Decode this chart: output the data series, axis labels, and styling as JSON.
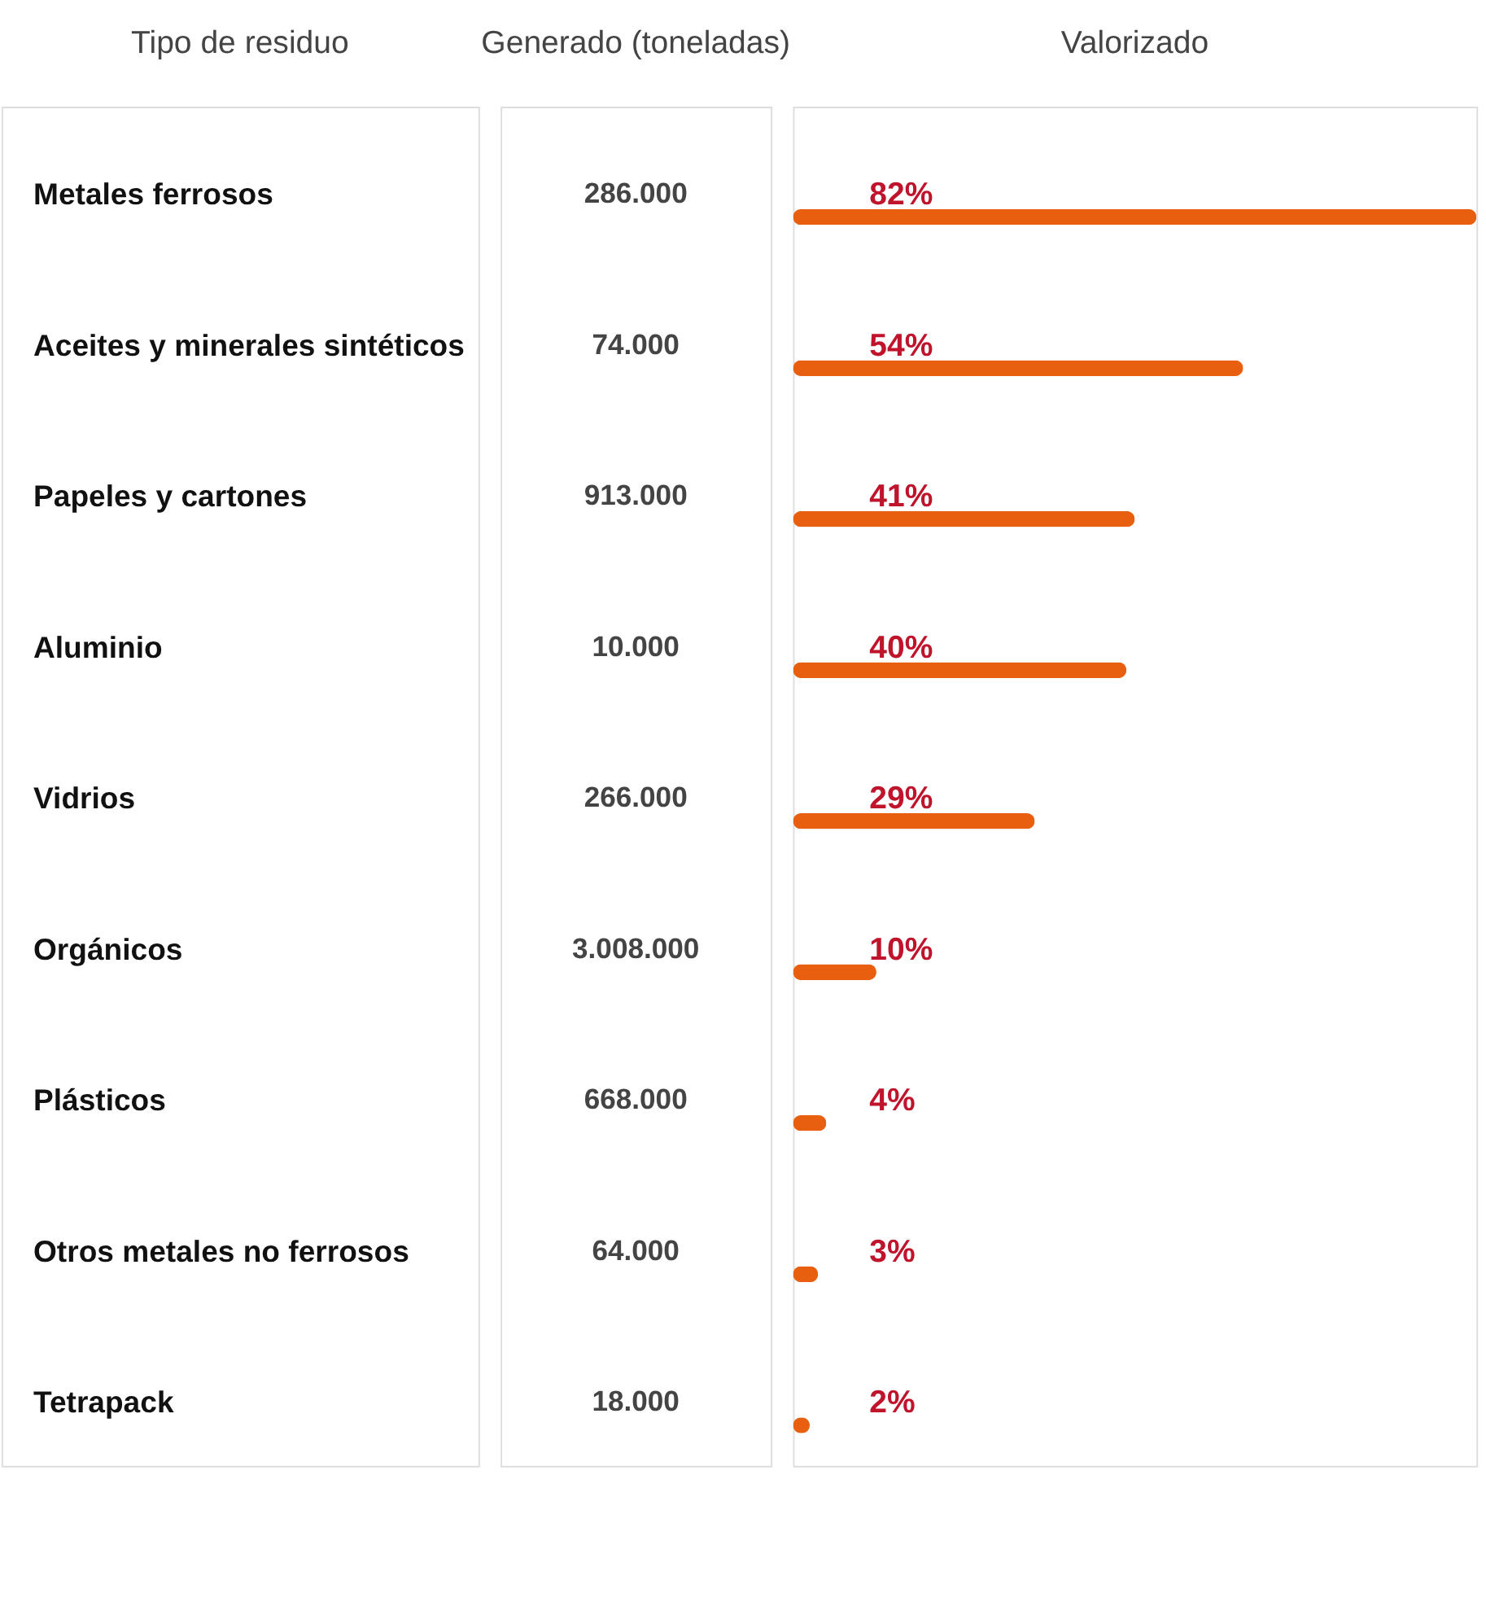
{
  "chart_data": {
    "type": "bar",
    "orientation": "horizontal",
    "ylabel": "Tipo de residuo",
    "xlabel": "Valorizado",
    "categories": [
      "Metales ferrosos",
      "Aceites y minerales sintéticos",
      "Papeles y cartones",
      "Aluminio",
      "Vidrios",
      "Orgánicos",
      "Plásticos",
      "Otros metales no ferrosos",
      "Tetrapack"
    ],
    "series": [
      {
        "color": "#e8600f",
        "values": [
          82,
          54,
          41,
          40,
          29,
          10,
          4,
          3,
          2
        ],
        "value_labels": [
          "82%",
          "54%",
          "41%",
          "40%",
          "29%",
          "10%",
          "4%",
          "3%",
          "2%"
        ]
      }
    ],
    "annotations": [
      "Generado (toneladas)",
      "286.000",
      "74.000",
      "913.000",
      "10.000",
      "266.000",
      "3.008.000",
      "668.000",
      "64.000",
      "18.000"
    ]
  }
}
